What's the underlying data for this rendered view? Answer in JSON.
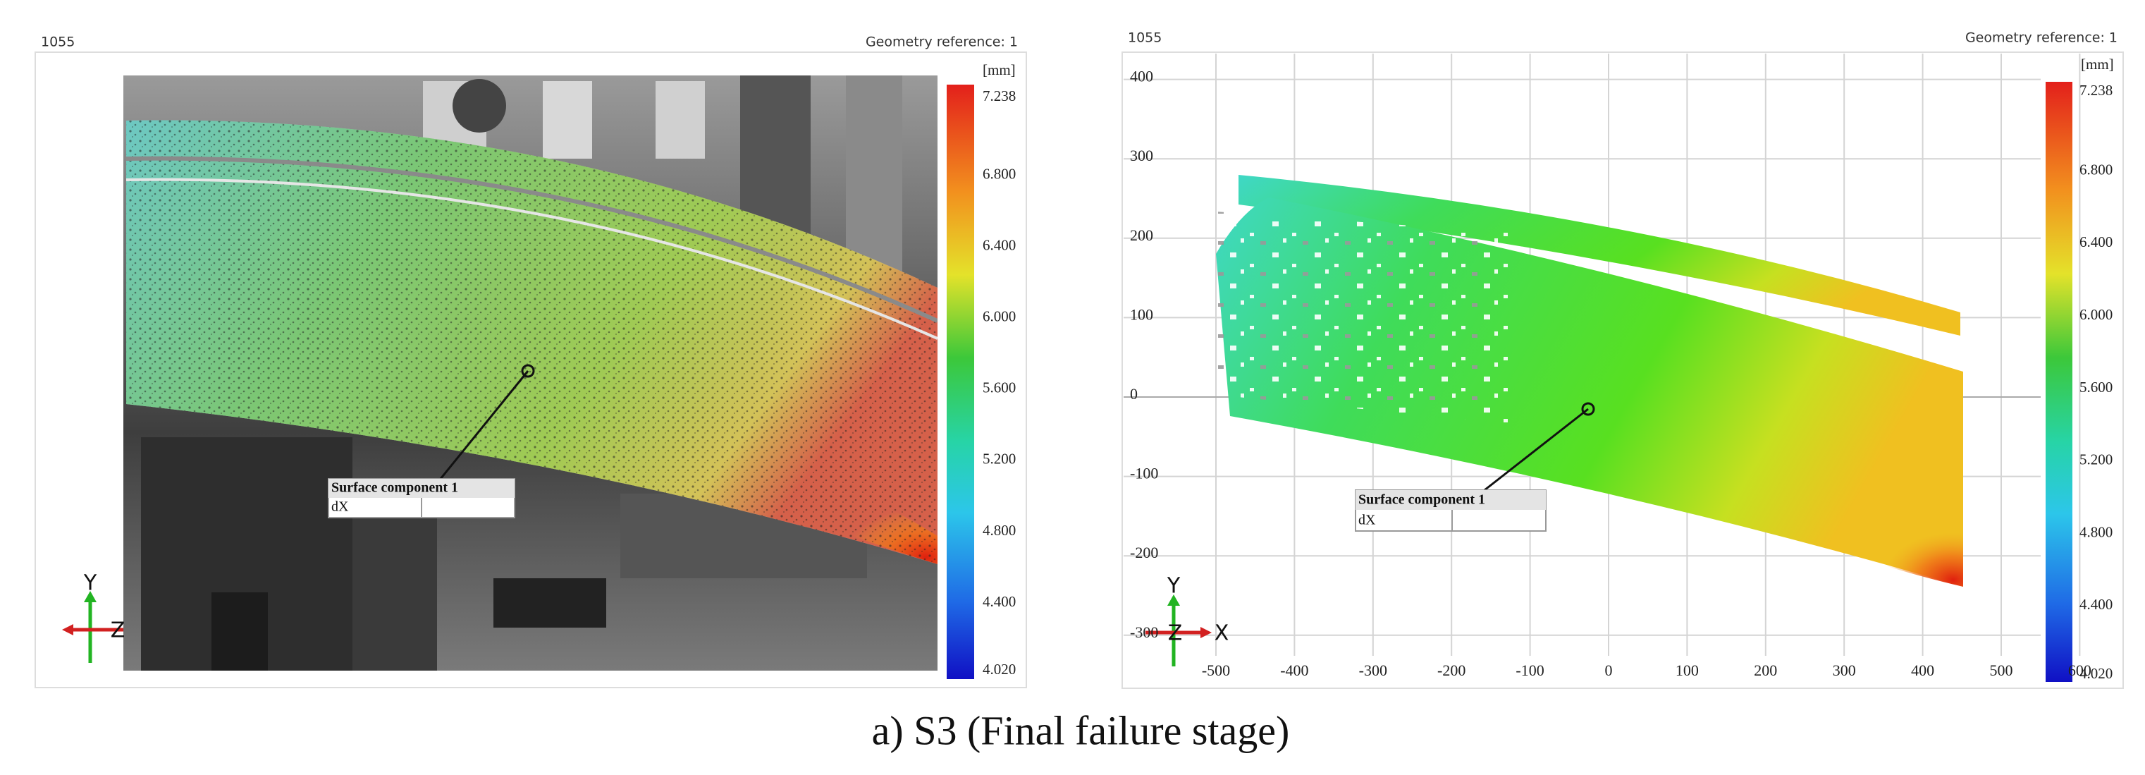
{
  "left_panel": {
    "id": "1055",
    "geometry_reference": "Geometry reference: 1",
    "unit": "[mm]",
    "colorbar_ticks": [
      "7.238",
      "6.800",
      "6.400",
      "6.000",
      "5.600",
      "5.200",
      "4.800",
      "4.400",
      "4.020"
    ],
    "callout": {
      "title": "Surface component 1",
      "row": "dX"
    },
    "axes": {
      "y": "Y",
      "z": "Z"
    }
  },
  "right_panel": {
    "id": "1055",
    "geometry_reference": "Geometry reference: 1",
    "unit": "[mm]",
    "colorbar_ticks": [
      "7.238",
      "6.800",
      "6.400",
      "6.000",
      "5.600",
      "5.200",
      "4.800",
      "4.400",
      "4.020"
    ],
    "x_ticks": [
      -500,
      -400,
      -300,
      -200,
      -100,
      0,
      100,
      200,
      300,
      400,
      500,
      600
    ],
    "y_ticks": [
      400,
      300,
      200,
      100,
      0,
      -100,
      -200,
      -300
    ],
    "callout": {
      "title": "Surface component 1",
      "row": "dX"
    },
    "axes": {
      "y": "Y",
      "z": "Z",
      "x": "X"
    }
  },
  "caption": "a) S3 (Final failure stage)"
}
